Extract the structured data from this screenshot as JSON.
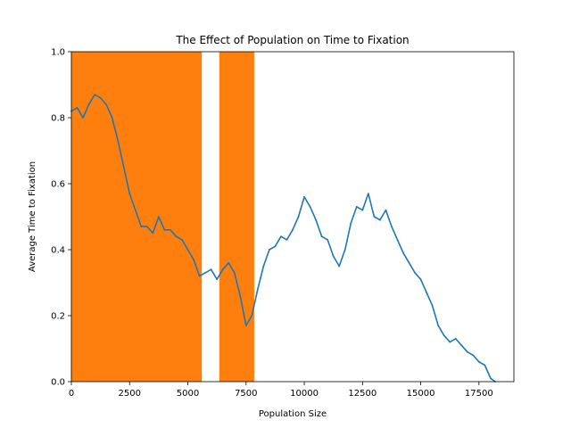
{
  "chart_data": {
    "type": "line",
    "title": "The Effect of Population on Time to Fixation",
    "xlabel": "Population Size",
    "ylabel": "Average Time to Fixation",
    "xlim": [
      0,
      19000
    ],
    "ylim": [
      0.0,
      1.0
    ],
    "grid": false,
    "legend": "none",
    "x_ticks": [
      0,
      2500,
      5000,
      7500,
      10000,
      12500,
      15000,
      17500
    ],
    "x_tick_labels": [
      "0",
      "2500",
      "5000",
      "7500",
      "10000",
      "12500",
      "15000",
      "17500"
    ],
    "y_ticks": [
      0.0,
      0.2,
      0.4,
      0.6,
      0.8,
      1.0
    ],
    "y_tick_labels": [
      "0.0",
      "0.2",
      "0.4",
      "0.6",
      "0.8",
      "1.0"
    ],
    "shaded_regions": [
      {
        "x_start": 0,
        "x_end": 5600,
        "y_start": 0.0,
        "y_end": 1.0,
        "color": "#ff7f0e"
      },
      {
        "x_start": 6350,
        "x_end": 7850,
        "y_start": 0.0,
        "y_end": 1.0,
        "color": "#ff7f0e"
      }
    ],
    "series": [
      {
        "color": "#1f77b4",
        "x": [
          0,
          250,
          500,
          750,
          1000,
          1250,
          1500,
          1750,
          2000,
          2250,
          2500,
          2750,
          3000,
          3250,
          3500,
          3750,
          4000,
          4250,
          4500,
          4750,
          5000,
          5250,
          5500,
          5750,
          6000,
          6250,
          6500,
          6750,
          7000,
          7250,
          7500,
          7750,
          8000,
          8250,
          8500,
          8750,
          9000,
          9250,
          9500,
          9750,
          10000,
          10250,
          10500,
          10750,
          11000,
          11250,
          11500,
          11750,
          12000,
          12250,
          12500,
          12750,
          13000,
          13250,
          13500,
          13750,
          14000,
          14250,
          14500,
          14750,
          15000,
          15250,
          15500,
          15750,
          16000,
          16250,
          16500,
          16750,
          17000,
          17250,
          17500,
          17750,
          18000,
          18200
        ],
        "y": [
          0.82,
          0.83,
          0.8,
          0.84,
          0.87,
          0.86,
          0.84,
          0.8,
          0.73,
          0.65,
          0.57,
          0.52,
          0.47,
          0.47,
          0.45,
          0.5,
          0.46,
          0.46,
          0.44,
          0.43,
          0.4,
          0.37,
          0.32,
          0.33,
          0.34,
          0.31,
          0.34,
          0.36,
          0.33,
          0.26,
          0.17,
          0.2,
          0.28,
          0.35,
          0.4,
          0.41,
          0.44,
          0.43,
          0.46,
          0.5,
          0.56,
          0.53,
          0.49,
          0.44,
          0.43,
          0.38,
          0.35,
          0.4,
          0.48,
          0.53,
          0.52,
          0.57,
          0.5,
          0.49,
          0.52,
          0.47,
          0.43,
          0.39,
          0.36,
          0.33,
          0.31,
          0.27,
          0.23,
          0.17,
          0.14,
          0.12,
          0.13,
          0.11,
          0.09,
          0.08,
          0.06,
          0.05,
          0.01,
          0.0
        ]
      }
    ]
  }
}
